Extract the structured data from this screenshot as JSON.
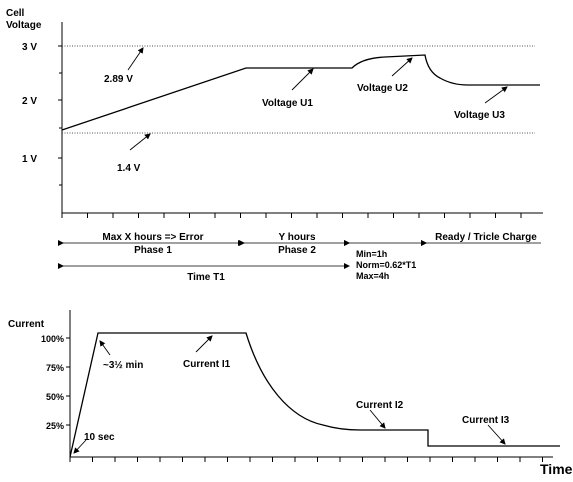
{
  "chart_data": [
    {
      "type": "line",
      "ylabel": "Cell Voltage",
      "yticks": [
        "3 V",
        "2 V",
        "1 V"
      ],
      "ylim": [
        0,
        3.5
      ],
      "reference_lines": [
        {
          "value": 2.89,
          "label": "2.89 V"
        },
        {
          "value": 1.4,
          "label": "1.4 V"
        }
      ],
      "series": [
        {
          "name": "Cell voltage",
          "x": [
            0,
            3.8,
            5.1,
            6.8,
            7.2,
            9.5
          ],
          "y": [
            1.45,
            2.48,
            2.48,
            2.7,
            2.48,
            2.2
          ]
        }
      ],
      "annotations": [
        "Voltage U1",
        "Voltage U2",
        "Voltage U3"
      ]
    },
    {
      "type": "line",
      "ylabel": "Current",
      "xlabel": "Time",
      "yticks": [
        "100%",
        "75%",
        "50%",
        "25%"
      ],
      "ylim": [
        0,
        115
      ],
      "series": [
        {
          "name": "Current",
          "x": [
            0,
            0.5,
            3.3,
            5.1,
            6.7,
            6.7,
            9.3
          ],
          "y": [
            0,
            100,
            100,
            20,
            20,
            6,
            6
          ]
        }
      ],
      "annotations": [
        "10 sec",
        "~3½ min",
        "Current I1",
        "Current I2",
        "Current I3"
      ]
    }
  ],
  "phases": {
    "phase1_top": "Max X hours => Error",
    "phase1_bottom": "Phase 1",
    "phase2_top": "Y hours",
    "phase2_bottom": "Phase 2",
    "ready": "Ready / Tricle Charge",
    "time_t1": "Time T1",
    "durations": [
      "Min=1h",
      "Norm=0.62*T1",
      "Max=4h"
    ]
  }
}
